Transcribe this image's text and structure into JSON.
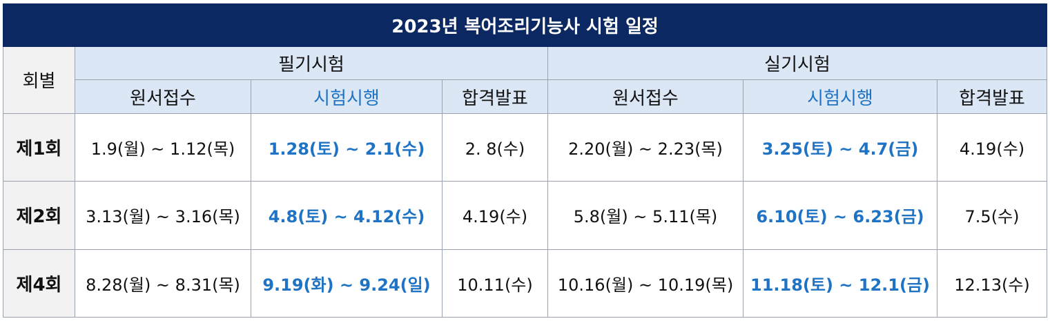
{
  "title": "2023년 복어조리기능사 시험 일정",
  "headers": {
    "round": "회별",
    "written": "필기시험",
    "practical": "실기시험",
    "application": "원서접수",
    "exam": "시험시행",
    "result": "합격발표"
  },
  "colors": {
    "title_bg": "#0b2863",
    "header_bg": "#dbe7f5",
    "round_bg": "#f2f2f2",
    "accent_blue": "#1f73c4"
  },
  "rows": [
    {
      "round": "제1회",
      "written_application": "1.9(월) ~ 1.12(목)",
      "written_exam": "1.28(토) ~ 2.1(수)",
      "written_result": "2. 8(수)",
      "practical_application": "2.20(월) ~ 2.23(목)",
      "practical_exam": "3.25(토) ~ 4.7(금)",
      "practical_result": "4.19(수)"
    },
    {
      "round": "제2회",
      "written_application": "3.13(월) ~ 3.16(목)",
      "written_exam": "4.8(토) ~ 4.12(수)",
      "written_result": "4.19(수)",
      "practical_application": "5.8(월) ~ 5.11(목)",
      "practical_exam": "6.10(토) ~ 6.23(금)",
      "practical_result": "7.5(수)"
    },
    {
      "round": "제4회",
      "written_application": "8.28(월) ~ 8.31(목)",
      "written_exam": "9.19(화) ~ 9.24(일)",
      "written_result": "10.11(수)",
      "practical_application": "10.16(월) ~ 10.19(목)",
      "practical_exam": "11.18(토) ~ 12.1(금)",
      "practical_result": "12.13(수)"
    }
  ]
}
